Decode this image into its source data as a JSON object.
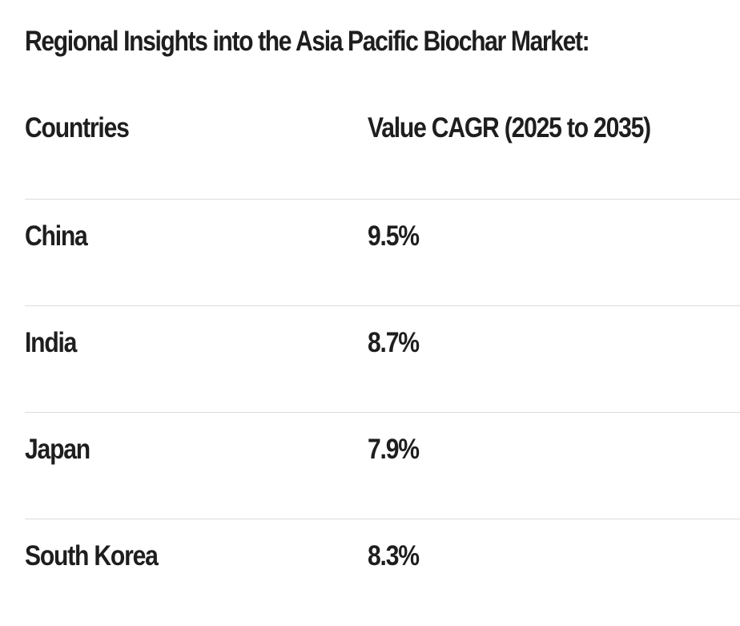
{
  "title": "Regional Insights into the Asia Pacific Biochar Market:",
  "table": {
    "headers": [
      "Countries",
      "Value CAGR (2025 to 2035)"
    ],
    "rows": [
      [
        "China",
        "9.5%"
      ],
      [
        "India",
        "8.7%"
      ],
      [
        "Japan",
        "7.9%"
      ],
      [
        "South Korea",
        "8.3%"
      ]
    ]
  }
}
